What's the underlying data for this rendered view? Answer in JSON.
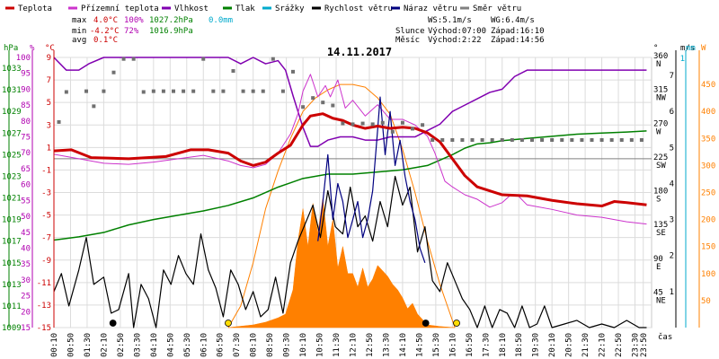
{
  "chart_data": {
    "type": "line",
    "title": "14.11.2017",
    "xlabel": "čas",
    "x_ticks": [
      "00:10",
      "00:50",
      "01:30",
      "02:10",
      "02:50",
      "03:30",
      "04:10",
      "04:50",
      "05:30",
      "06:10",
      "06:50",
      "07:30",
      "08:10",
      "08:50",
      "09:30",
      "10:10",
      "10:50",
      "11:30",
      "12:10",
      "12:50",
      "13:30",
      "14:10",
      "14:50",
      "15:30",
      "16:10",
      "16:50",
      "17:30",
      "18:10",
      "18:50",
      "19:30",
      "20:10",
      "20:50",
      "21:30",
      "22:10",
      "22:50",
      "23:30",
      "23:50"
    ],
    "axes": {
      "hpa": {
        "label": "hPa",
        "color": "#008000",
        "ticks": [
          "1009",
          "1011",
          "1013",
          "1015",
          "1017",
          "1019",
          "1021",
          "1023",
          "1025",
          "1027",
          "1029",
          "1031",
          "1033"
        ],
        "range": [
          1009,
          1034
        ]
      },
      "pct": {
        "label": "%",
        "color": "#b000b0",
        "ticks": [
          "15",
          "20",
          "25",
          "30",
          "35",
          "40",
          "45",
          "50",
          "55",
          "60",
          "65",
          "70",
          "75",
          "80",
          "85",
          "90",
          "95",
          "100"
        ],
        "range": [
          15,
          100
        ]
      },
      "temp": {
        "label": "°C",
        "color": "#cc0000",
        "ticks": [
          "-15",
          "-13",
          "-11",
          "-9",
          "-7",
          "-5",
          "-3",
          "-1",
          "1",
          "3",
          "5",
          "7",
          "9"
        ],
        "range": [
          -15,
          9
        ]
      },
      "dir": {
        "label": "°",
        "ticks": [
          "45",
          "90",
          "135",
          "180",
          "225",
          "270",
          "315",
          "360"
        ],
        "compass": [
          "NE",
          "E",
          "SE",
          "S",
          "SW",
          "W",
          "NW",
          "N"
        ],
        "range": [
          0,
          360
        ]
      },
      "ms": {
        "label": "m/s",
        "ticks": [
          "1",
          "2",
          "3",
          "4",
          "5",
          "6",
          "7"
        ],
        "range": [
          0,
          7.5
        ]
      },
      "mm": {
        "label": "mm",
        "color": "#00aacc",
        "ticks": [
          "1"
        ]
      },
      "wm2": {
        "label": "W",
        "color": "#ff8000",
        "ticks": [
          "50",
          "100",
          "150",
          "200",
          "250",
          "300",
          "350",
          "400",
          "450"
        ],
        "range": [
          0,
          500
        ]
      }
    },
    "legend": [
      {
        "name": "Teplota",
        "color": "#cc0000"
      },
      {
        "name": "Přízemní teplota",
        "color": "#cc33cc"
      },
      {
        "name": "Vlhkost",
        "color": "#8000b0"
      },
      {
        "name": "Tlak",
        "color": "#008000"
      },
      {
        "name": "Srážky",
        "color": "#00aacc"
      },
      {
        "name": "Rychlost větru",
        "color": "#000000"
      },
      {
        "name": "Náraz větru",
        "color": "#000080"
      },
      {
        "name": "Směr větru",
        "color": "#808080"
      }
    ],
    "stats": [
      {
        "label": "max",
        "temp": "4.0°C",
        "hum": "100%",
        "press": "1027.2hPa",
        "rain": "0.0mm"
      },
      {
        "label": "min",
        "temp": "-4.2°C",
        "hum": "72%",
        "press": "1016.9hPa"
      },
      {
        "label": "avg",
        "temp": "0.1°C"
      }
    ],
    "info": {
      "ws": "WS:5.1m/s",
      "wg": "WG:6.4m/s",
      "sun_label": "Slunce",
      "sunrise": "Východ:07:00",
      "sunset": "Západ:16:10",
      "moon_label": "Měsíc",
      "moonrise": "Východ:2:22",
      "moonset": "Západ:14:56"
    },
    "series": [
      {
        "name": "Teplota",
        "color": "#cc0000",
        "x": [
          0,
          0.7,
          1.5,
          3,
          4.5,
          5.5,
          6.2,
          7,
          7.5,
          8,
          8.5,
          9,
          9.5,
          10,
          10.3,
          10.8,
          11.2,
          11.6,
          12,
          12.5,
          13,
          13.5,
          14,
          14.5,
          15,
          15.5,
          16,
          16.5,
          17,
          18,
          19,
          20,
          21,
          22,
          22.5,
          23,
          23.8
        ],
        "y": [
          0.7,
          0.8,
          0.1,
          0,
          0.2,
          0.8,
          0.8,
          0.5,
          -0.2,
          -0.6,
          -0.3,
          0.5,
          1.2,
          3,
          3.8,
          4,
          3.6,
          3.4,
          3,
          2.7,
          2.9,
          2.7,
          2.8,
          2.7,
          2.3,
          1.5,
          0,
          -1.5,
          -2.5,
          -3.2,
          -3.3,
          -3.7,
          -4,
          -4.2,
          -3.8,
          -3.9,
          -4.1
        ]
      },
      {
        "name": "Přízemní teplota",
        "color": "#cc33cc",
        "x": [
          0,
          1,
          2,
          3,
          4,
          5,
          6,
          7,
          7.5,
          8,
          8.5,
          9,
          9.5,
          9.8,
          10,
          10.3,
          10.6,
          10.9,
          11.1,
          11.4,
          11.7,
          12,
          12.5,
          13,
          13.5,
          14,
          14.5,
          15,
          15.3,
          15.7,
          16,
          16.5,
          17,
          17.5,
          18,
          18.3,
          18.6,
          19,
          20,
          21,
          22,
          23,
          23.8
        ],
        "y": [
          0.4,
          0,
          -0.4,
          -0.5,
          -0.3,
          0,
          0.3,
          -0.2,
          -0.6,
          -0.8,
          -0.5,
          0.5,
          2.2,
          4,
          6,
          7.5,
          5.5,
          6.5,
          5.5,
          7,
          4.5,
          5.2,
          3.8,
          4.8,
          3.5,
          3.5,
          3,
          2,
          0.5,
          -2,
          -2.5,
          -3.2,
          -3.6,
          -4.3,
          -3.9,
          -3.3,
          -3.2,
          -4.1,
          -4.5,
          -5,
          -5.2,
          -5.6,
          -5.8
        ]
      },
      {
        "name": "Vlhkost",
        "color": "#8000b0",
        "x": [
          0,
          0.5,
          1,
          1.4,
          2,
          3,
          4,
          5,
          6,
          7,
          7.5,
          8,
          8.5,
          9,
          9.3,
          9.6,
          10,
          10.3,
          10.6,
          11,
          11.5,
          12,
          12.5,
          13,
          13.5,
          14,
          14.5,
          15,
          15.5,
          16,
          16.5,
          17,
          17.5,
          18,
          18.5,
          19,
          20,
          21,
          22,
          23,
          23.8
        ],
        "y": [
          100,
          96,
          96,
          98,
          100,
          100,
          100,
          100,
          100,
          100,
          98,
          100,
          98,
          99,
          96,
          88,
          78,
          72,
          72,
          74,
          75,
          75,
          74,
          74,
          75,
          75,
          75,
          77,
          79,
          83,
          85,
          87,
          89,
          90,
          94,
          96,
          96,
          96,
          96,
          96,
          96
        ]
      },
      {
        "name": "Tlak",
        "color": "#008000",
        "x": [
          0,
          1,
          2,
          3,
          4,
          5,
          6,
          7,
          8,
          9,
          9.5,
          10,
          11,
          12,
          13,
          14,
          15,
          15.5,
          16,
          16.5,
          17,
          17.5,
          18,
          19,
          20,
          21,
          22,
          23,
          23.8
        ],
        "y": [
          1017.1,
          1017.4,
          1017.8,
          1018.5,
          1019,
          1019.4,
          1019.8,
          1020.3,
          1021,
          1022,
          1022.4,
          1022.8,
          1023.2,
          1023.2,
          1023.4,
          1023.6,
          1024,
          1024.5,
          1025,
          1025.6,
          1026,
          1026.1,
          1026.3,
          1026.5,
          1026.7,
          1026.9,
          1027.0,
          1027.1,
          1027.2
        ]
      },
      {
        "name": "Rychlost větru",
        "color": "#000000",
        "x": [
          0,
          0.3,
          0.6,
          1,
          1.3,
          1.6,
          2,
          2.3,
          2.6,
          3,
          3.2,
          3.5,
          3.8,
          4.1,
          4.4,
          4.7,
          5,
          5.3,
          5.6,
          5.9,
          6.2,
          6.5,
          6.8,
          7.1,
          7.4,
          7.7,
          8,
          8.3,
          8.6,
          8.9,
          9.2,
          9.5,
          9.8,
          10.1,
          10.4,
          10.7,
          11,
          11.3,
          11.6,
          11.9,
          12.2,
          12.5,
          12.8,
          13.1,
          13.4,
          13.7,
          14,
          14.3,
          14.6,
          14.9,
          15.2,
          15.5,
          15.8,
          16.1,
          16.4,
          16.7,
          17,
          17.3,
          17.6,
          17.9,
          18.2,
          18.5,
          18.8,
          19.1,
          19.4,
          19.7,
          20,
          20.5,
          21,
          21.5,
          22,
          22.5,
          23,
          23.5,
          23.8
        ],
        "y": [
          1,
          1.5,
          0.6,
          1.6,
          2.5,
          1.2,
          1.4,
          0.4,
          0.5,
          1.5,
          0,
          1.2,
          0.8,
          0,
          1.6,
          1.2,
          2,
          1.5,
          1.2,
          2.6,
          1.6,
          1.1,
          0.3,
          1.6,
          1.2,
          0.5,
          1,
          0.3,
          0.5,
          1.4,
          0.4,
          1.8,
          2.4,
          2.9,
          3.4,
          2.5,
          3.8,
          2.8,
          2.6,
          3.9,
          2.8,
          3.1,
          2.4,
          3.5,
          2.8,
          4.2,
          3.4,
          3.9,
          2.1,
          2.8,
          1.3,
          1,
          1.8,
          1.3,
          0.8,
          0.5,
          0,
          0.6,
          0,
          0.5,
          0.4,
          0,
          0.6,
          0,
          0.1,
          0.6,
          0,
          0.1,
          0.2,
          0,
          0.1,
          0,
          0.2,
          0,
          0
        ]
      },
      {
        "name": "Náraz větru",
        "color": "#000080",
        "x": [
          10.6,
          10.8,
          11,
          11.2,
          11.4,
          11.6,
          11.8,
          12,
          12.2,
          12.4,
          12.6,
          12.8,
          13,
          13.1,
          13.3,
          13.5,
          13.7,
          13.9,
          14.1,
          14.3,
          14.5,
          14.7,
          14.9
        ],
        "y": [
          2.4,
          3.5,
          4.8,
          3,
          4,
          3.5,
          2.5,
          3,
          3.5,
          2.5,
          3,
          3.8,
          5.5,
          6.4,
          4.8,
          6.0,
          4.5,
          5.2,
          4.2,
          3.5,
          3.0,
          2.2,
          1.8
        ]
      },
      {
        "name": "Solar",
        "color": "#ff8000",
        "x": [
          7,
          7.5,
          8,
          8.5,
          9,
          9.5,
          10,
          10.5,
          11,
          11.5,
          12,
          12.5,
          13,
          13.5,
          14,
          14.5,
          15,
          15.5,
          16.1
        ],
        "y": [
          0,
          40,
          120,
          220,
          290,
          350,
          400,
          425,
          440,
          450,
          450,
          445,
          425,
          395,
          330,
          250,
          160,
          80,
          0
        ]
      },
      {
        "name": "Sluneční záření (plocha)",
        "color": "#ff8000",
        "x": [
          7,
          8,
          8.5,
          9,
          9.3,
          9.6,
          9.8,
          10,
          10.2,
          10.4,
          10.6,
          10.8,
          11,
          11.2,
          11.4,
          11.6,
          11.8,
          12,
          12.2,
          12.4,
          12.6,
          12.8,
          13,
          13.2,
          13.4,
          13.6,
          13.8,
          14,
          14.2,
          14.4,
          14.6,
          14.8,
          15,
          15.5,
          16.1
        ],
        "y": [
          0,
          5,
          10,
          18,
          25,
          70,
          160,
          220,
          150,
          230,
          175,
          240,
          150,
          200,
          110,
          150,
          100,
          100,
          75,
          110,
          75,
          90,
          115,
          105,
          95,
          80,
          70,
          55,
          35,
          45,
          25,
          15,
          5,
          2,
          0
        ]
      }
    ],
    "wind_direction": {
      "name": "Směr větru",
      "x": [
        0.2,
        0.5,
        1.3,
        1.6,
        2.0,
        2.4,
        2.8,
        3.2,
        3.6,
        4.0,
        4.4,
        4.8,
        5.2,
        5.6,
        6.0,
        6.4,
        6.8,
        7.2,
        7.6,
        8.0,
        8.4,
        8.8,
        9.2,
        9.6,
        10.0,
        10.4,
        10.8,
        11.2,
        11.6,
        12.0,
        12.4,
        12.8,
        13.2,
        13.6,
        14.0,
        14.4,
        14.8,
        15.2,
        15.6,
        16.0,
        16.4,
        16.8,
        17.2,
        17.6,
        18.0,
        18.4,
        18.8,
        19.2,
        19.6,
        20.0,
        20.4,
        20.8,
        21.2,
        21.6,
        22.0,
        22.4,
        22.8,
        23.2,
        23.6
      ],
      "y": [
        274,
        314,
        315,
        295,
        315,
        340,
        358,
        358,
        314,
        315,
        315,
        315,
        315,
        315,
        358,
        315,
        315,
        342,
        315,
        315,
        315,
        358,
        315,
        341,
        294,
        306,
        300,
        296,
        272,
        271,
        272,
        271,
        273,
        261,
        273,
        265,
        270,
        250,
        250,
        250,
        250,
        250,
        250,
        250,
        250,
        250,
        250,
        250,
        250,
        250,
        250,
        250,
        250,
        250,
        250,
        250,
        250,
        250,
        250
      ]
    },
    "markers": [
      {
        "type": "moonrise",
        "x": 2.37,
        "color": "#000000"
      },
      {
        "type": "sunrise",
        "x": 7.0,
        "color": "#ffdd00"
      },
      {
        "type": "moonset",
        "x": 14.93,
        "color": "#000000"
      },
      {
        "type": "sunset",
        "x": 16.17,
        "color": "#ffdd00"
      }
    ]
  }
}
